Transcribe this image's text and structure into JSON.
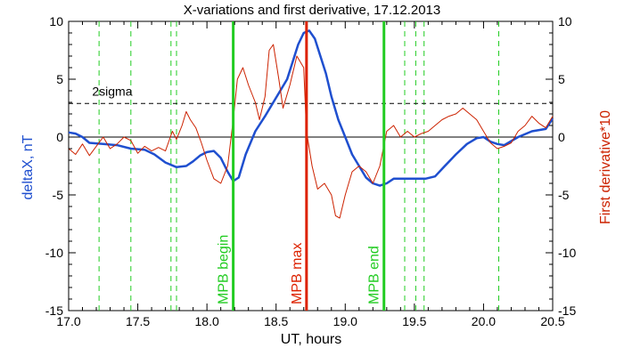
{
  "chart_data": {
    "type": "line",
    "title": "X-variations and first derivative, 17.12.2013",
    "xlabel": "UT, hours",
    "ylabel_left": "deltaX, nT",
    "ylabel_right": "First derivative*10",
    "xlim": [
      17.0,
      20.5
    ],
    "ylim": [
      -15,
      10
    ],
    "x_ticks": [
      "17.0",
      "17.5",
      "18.0",
      "18.5",
      "19.0",
      "19.5",
      "20.0",
      "20.5"
    ],
    "x_tick_values": [
      17.0,
      17.5,
      18.0,
      18.5,
      19.0,
      19.5,
      20.0,
      20.5
    ],
    "y_ticks": [
      "10",
      "5",
      "0",
      "-5",
      "-10",
      "-15"
    ],
    "y_tick_values": [
      10,
      5,
      0,
      -5,
      -10,
      -15
    ],
    "colors": {
      "deltaX": "#1f4fcf",
      "derivative": "#cc2200",
      "markers_green": "#22cc22",
      "mpb_max": "#dd2200",
      "zero_line": "#000000",
      "sigma_line": "#000000"
    },
    "sigma": {
      "label": "2sigma",
      "value": 2.9
    },
    "mpb_lines": [
      {
        "label": "MPB begin",
        "x": 18.19,
        "color": "#22cc22"
      },
      {
        "label": "MPB max",
        "x": 18.72,
        "color": "#dd2200"
      },
      {
        "label": "MPB end",
        "x": 19.28,
        "color": "#22cc22"
      }
    ],
    "dashed_markers": [
      17.22,
      17.45,
      17.74,
      17.78,
      19.43,
      19.51,
      19.57,
      20.11
    ],
    "series": [
      {
        "name": "deltaX",
        "color": "#1f4fcf",
        "x": [
          17.0,
          17.05,
          17.1,
          17.15,
          17.25,
          17.35,
          17.45,
          17.55,
          17.62,
          17.7,
          17.78,
          17.85,
          17.9,
          17.95,
          18.0,
          18.05,
          18.1,
          18.15,
          18.19,
          18.23,
          18.28,
          18.35,
          18.42,
          18.48,
          18.52,
          18.58,
          18.62,
          18.66,
          18.7,
          18.74,
          18.78,
          18.82,
          18.86,
          18.9,
          18.95,
          19.0,
          19.05,
          19.1,
          19.15,
          19.2,
          19.25,
          19.3,
          19.35,
          19.42,
          19.5,
          19.58,
          19.65,
          19.72,
          19.8,
          19.88,
          19.95,
          20.0,
          20.05,
          20.1,
          20.15,
          20.25,
          20.35,
          20.45,
          20.5
        ],
        "values": [
          0.4,
          0.3,
          0.0,
          -0.5,
          -0.6,
          -0.7,
          -1.0,
          -1.1,
          -1.5,
          -2.2,
          -2.6,
          -2.5,
          -2.1,
          -1.6,
          -1.3,
          -1.2,
          -1.8,
          -3.0,
          -3.8,
          -3.5,
          -1.5,
          0.5,
          1.8,
          3.0,
          3.8,
          5.0,
          6.5,
          8.0,
          9.0,
          9.2,
          8.5,
          7.0,
          5.5,
          3.5,
          1.5,
          0.0,
          -1.5,
          -2.5,
          -3.5,
          -4.0,
          -4.2,
          -4.0,
          -3.6,
          -3.6,
          -3.6,
          -3.6,
          -3.4,
          -2.5,
          -1.5,
          -0.6,
          -0.1,
          0.0,
          -0.4,
          -0.6,
          -0.7,
          0.0,
          0.5,
          0.7,
          1.6
        ]
      },
      {
        "name": "First derivative*10",
        "color": "#cc2200",
        "x": [
          17.0,
          17.05,
          17.1,
          17.15,
          17.2,
          17.25,
          17.3,
          17.35,
          17.4,
          17.45,
          17.5,
          17.55,
          17.6,
          17.65,
          17.7,
          17.75,
          17.78,
          17.82,
          17.85,
          17.88,
          17.92,
          17.96,
          18.0,
          18.05,
          18.1,
          18.15,
          18.19,
          18.22,
          18.26,
          18.3,
          18.35,
          18.38,
          18.42,
          18.45,
          18.48,
          18.52,
          18.55,
          18.6,
          18.65,
          18.7,
          18.72,
          18.76,
          18.8,
          18.85,
          18.9,
          18.93,
          18.96,
          19.0,
          19.05,
          19.1,
          19.15,
          19.2,
          19.25,
          19.3,
          19.35,
          19.4,
          19.45,
          19.5,
          19.55,
          19.6,
          19.65,
          19.7,
          19.75,
          19.8,
          19.85,
          19.9,
          19.95,
          20.0,
          20.05,
          20.1,
          20.15,
          20.2,
          20.25,
          20.3,
          20.35,
          20.4,
          20.45,
          20.5
        ],
        "values": [
          -1.0,
          -1.5,
          -0.6,
          -1.6,
          -0.8,
          0.0,
          -1.0,
          -0.6,
          0.0,
          -0.3,
          -1.4,
          -0.8,
          -1.2,
          -0.9,
          -1.2,
          0.5,
          -0.2,
          1.0,
          2.2,
          1.5,
          0.8,
          -0.5,
          -2.0,
          -3.6,
          -4.0,
          -2.5,
          1.5,
          5.0,
          6.0,
          4.5,
          3.0,
          1.5,
          3.5,
          7.5,
          8.0,
          5.0,
          2.5,
          4.5,
          7.0,
          6.0,
          0.5,
          -2.5,
          -4.5,
          -4.0,
          -5.0,
          -6.8,
          -7.0,
          -5.0,
          -3.0,
          -2.5,
          -3.0,
          -4.0,
          -2.5,
          0.5,
          1.0,
          0.0,
          0.5,
          0.0,
          0.3,
          0.5,
          1.0,
          1.5,
          1.8,
          2.0,
          2.5,
          2.0,
          1.5,
          0.5,
          -0.5,
          -1.0,
          -0.8,
          -0.5,
          0.5,
          1.0,
          1.8,
          1.2,
          0.8,
          1.8
        ]
      }
    ]
  }
}
